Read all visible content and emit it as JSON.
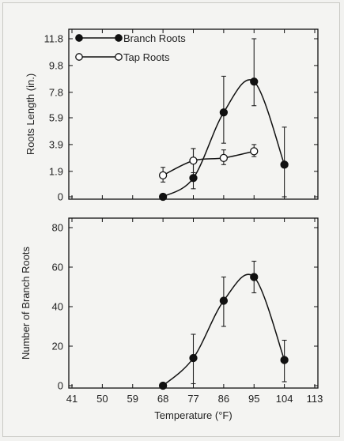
{
  "chart_data": [
    {
      "type": "line",
      "ylabel": "Roots Length (in.)",
      "xlabel": "",
      "xlim": [
        41,
        113
      ],
      "ylim": [
        0,
        11.8
      ],
      "y_ticks": [
        0,
        1.9,
        3.9,
        5.9,
        7.8,
        9.8,
        11.8
      ],
      "y_tick_labels": [
        "0",
        "1.9",
        "3.9",
        "5.9",
        "7.8",
        "9.8",
        "11.8"
      ],
      "legend": "top-left",
      "series": [
        {
          "name": "Branch Roots",
          "marker": "filled-circle",
          "x": [
            68,
            77,
            86,
            95,
            104
          ],
          "values": [
            0,
            1.4,
            6.3,
            8.6,
            2.4
          ],
          "error_low": [
            0,
            0.6,
            4.0,
            6.8,
            0
          ],
          "error_high": [
            0,
            3.6,
            9.0,
            11.8,
            5.2
          ]
        },
        {
          "name": "Tap Roots",
          "marker": "open-circle",
          "x": [
            68,
            77,
            86,
            95,
            104
          ],
          "values": [
            1.6,
            2.7,
            2.9,
            3.4,
            null
          ],
          "error_low": [
            1.1,
            1.8,
            2.4,
            3.0,
            null
          ],
          "error_high": [
            2.2,
            3.6,
            3.5,
            3.9,
            null
          ]
        }
      ]
    },
    {
      "type": "line",
      "ylabel": "Number of Branch Roots",
      "xlabel": "Temperature (°F)",
      "xlim": [
        41,
        113
      ],
      "ylim": [
        0,
        80
      ],
      "x_ticks": [
        41,
        50,
        59,
        68,
        77,
        86,
        95,
        104,
        113
      ],
      "y_ticks": [
        0,
        20,
        40,
        60,
        80
      ],
      "series": [
        {
          "name": "Branch Roots",
          "marker": "filled-circle",
          "x": [
            68,
            77,
            86,
            95,
            104
          ],
          "values": [
            0,
            14,
            43,
            55,
            13
          ],
          "error_low": [
            0,
            1,
            30,
            47,
            2
          ],
          "error_high": [
            0,
            26,
            55,
            63,
            23
          ]
        }
      ]
    }
  ]
}
